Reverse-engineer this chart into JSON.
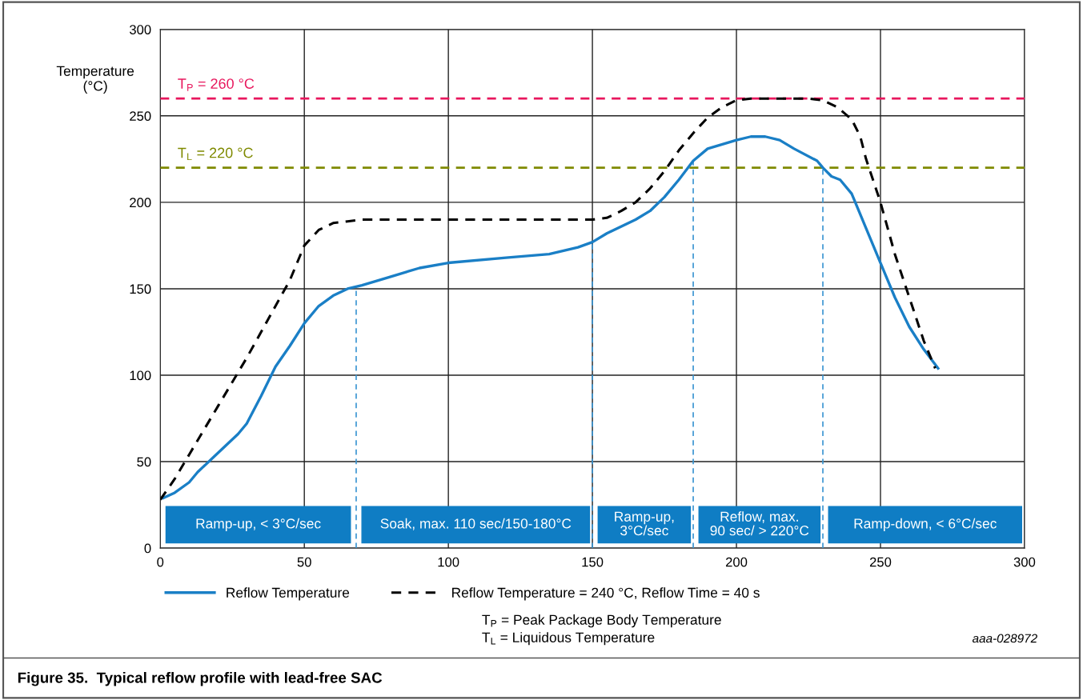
{
  "chart_data": {
    "type": "line",
    "title": "Figure 35.  Typical reflow profile with lead-free SAC",
    "ylabel": "Temperature\n(°C)",
    "xlim": [
      0,
      300
    ],
    "xticks": [
      0,
      50,
      100,
      150,
      200,
      250,
      300
    ],
    "ylim": [
      0,
      300
    ],
    "yticks": [
      0,
      50,
      100,
      150,
      200,
      250,
      300
    ],
    "grid": true,
    "legend": "bottom",
    "marker": "none",
    "series": [
      {
        "name": "Reflow Temperature",
        "color": "#1a7fc6",
        "line_style": "solid",
        "x": [
          1,
          5,
          10,
          13,
          20,
          27,
          30,
          35,
          40,
          45,
          50,
          55,
          60,
          65,
          70,
          80,
          90,
          100,
          120,
          135,
          145,
          150,
          155,
          165,
          170,
          175,
          180,
          185,
          190,
          200,
          205,
          210,
          215,
          220,
          228,
          230,
          233,
          236,
          240,
          245,
          250,
          255,
          260,
          265,
          270
        ],
        "values": [
          29,
          32,
          38,
          44,
          55,
          66,
          72,
          88,
          105,
          117,
          130,
          140,
          146,
          150,
          152,
          157,
          162,
          165,
          168,
          170,
          174,
          177,
          182,
          190,
          195,
          203,
          213,
          224,
          231,
          236,
          238,
          238,
          236,
          231,
          224,
          220,
          215,
          213,
          205,
          185,
          165,
          145,
          128,
          115,
          104
        ]
      },
      {
        "name": "Reflow Temperature = 240 °C, Reflow Time = 40 s",
        "color": "#000000",
        "line_style": "dashed",
        "x": [
          0,
          5,
          10,
          20,
          30,
          40,
          45,
          50,
          55,
          60,
          65,
          70,
          100,
          150,
          155,
          160,
          165,
          170,
          175,
          180,
          185,
          190,
          195,
          200,
          205,
          215,
          225,
          230,
          235,
          240,
          243,
          245,
          250,
          255,
          260,
          265,
          269
        ],
        "values": [
          28,
          40,
          54,
          82,
          110,
          140,
          155,
          175,
          184,
          188,
          189,
          190,
          190,
          190,
          191,
          195,
          200,
          208,
          218,
          230,
          240,
          249,
          255,
          259,
          260,
          260,
          260,
          259,
          255,
          248,
          238,
          225,
          200,
          170,
          145,
          120,
          104
        ]
      }
    ],
    "ref_lines": [
      {
        "axis": "y",
        "value": 260,
        "label": "T$_{P}$ = 260 °C",
        "color": "#e8175d",
        "line_style": "dashed"
      },
      {
        "axis": "y",
        "value": 220,
        "label": "T$_{L}$ = 220 °C",
        "color": "#7f8a00",
        "line_style": "dashed"
      },
      {
        "axis": "x",
        "value": 68,
        "color": "#3a95d2",
        "line_style": "dashed"
      },
      {
        "axis": "x",
        "value": 150,
        "color": "#3a95d2",
        "line_style": "dashed"
      },
      {
        "axis": "x",
        "value": 185,
        "color": "#3a95d2",
        "line_style": "dashed"
      },
      {
        "axis": "x",
        "value": 230,
        "color": "#3a95d2",
        "line_style": "dashed"
      }
    ],
    "bands": [
      {
        "axis": "x",
        "from": 2,
        "to": 66,
        "label": "Ramp-up, < 3°C/sec",
        "color": "#0f7dc4"
      },
      {
        "axis": "x",
        "from": 70,
        "to": 149,
        "label": "Soak, max. 110 sec/150-180°C",
        "color": "#0f7dc4"
      },
      {
        "axis": "x",
        "from": 152,
        "to": 184,
        "label": "Ramp-up,\n3°C/sec",
        "color": "#0f7dc4"
      },
      {
        "axis": "x",
        "from": 187,
        "to": 229,
        "label": "Reflow, max.\n90 sec/ > 220°C",
        "color": "#0f7dc4"
      },
      {
        "axis": "x",
        "from": 232,
        "to": 299,
        "label": "Ramp-down, < 6°C/sec",
        "color": "#0f7dc4"
      }
    ],
    "annotations": [
      "T$_{P}$ = Peak Package Body Temperature",
      "T$_{L}$ = Liquidous Temperature",
      "aaa-028972"
    ]
  }
}
